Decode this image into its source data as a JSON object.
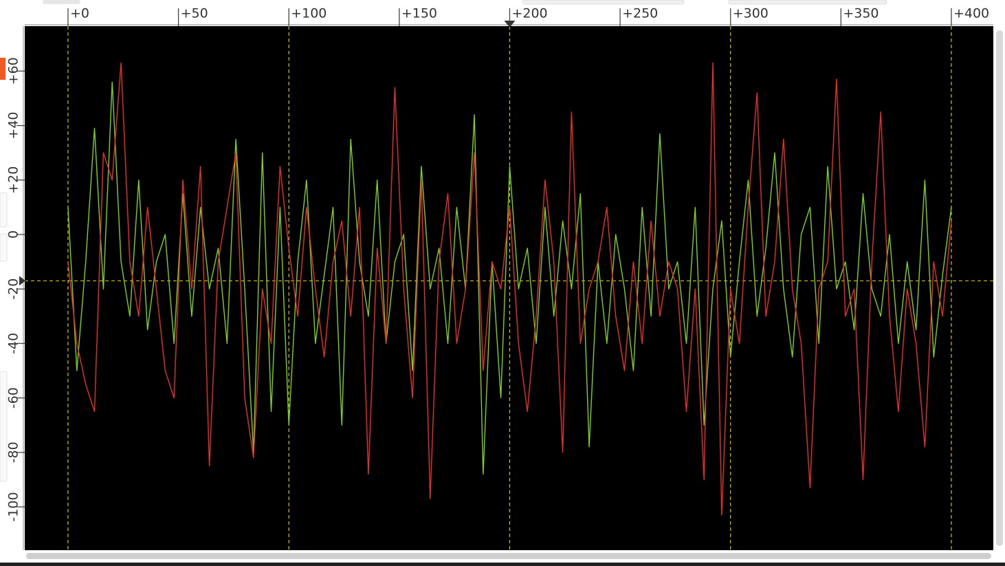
{
  "chart_data": {
    "type": "line",
    "x": [
      0,
      4,
      8,
      12,
      16,
      20,
      24,
      28,
      32,
      36,
      40,
      44,
      48,
      52,
      56,
      60,
      64,
      68,
      72,
      76,
      80,
      84,
      88,
      92,
      96,
      100,
      104,
      108,
      112,
      116,
      120,
      124,
      128,
      132,
      136,
      140,
      144,
      148,
      152,
      156,
      160,
      164,
      168,
      172,
      176,
      180,
      184,
      188,
      192,
      196,
      200,
      204,
      208,
      212,
      216,
      220,
      224,
      228,
      232,
      236,
      240,
      244,
      248,
      252,
      256,
      260,
      264,
      268,
      272,
      276,
      280,
      284,
      288,
      292,
      296,
      300,
      304,
      308,
      312,
      316,
      320,
      324,
      328,
      332,
      336,
      340,
      344,
      348,
      352,
      356,
      360,
      364,
      368,
      372,
      376,
      380,
      384,
      388,
      392,
      396,
      400
    ],
    "series": [
      {
        "color": "#7ed321",
        "values": [
          10,
          -50,
          -10,
          39,
          -20,
          56,
          -10,
          -30,
          20,
          -35,
          -10,
          0,
          -40,
          15,
          -30,
          10,
          -20,
          -5,
          -40,
          35,
          -20,
          -80,
          30,
          -65,
          10,
          -70,
          -10,
          20,
          -40,
          -15,
          10,
          -70,
          35,
          -10,
          -30,
          20,
          -40,
          -10,
          0,
          -50,
          25,
          -20,
          -5,
          -40,
          10,
          -20,
          44,
          -88,
          -10,
          -60,
          25,
          -20,
          -5,
          -40,
          10,
          -30,
          5,
          -20,
          15,
          -78,
          -10,
          -40,
          0,
          -20,
          -50,
          10,
          -30,
          37,
          -20,
          -10,
          -40,
          10,
          -70,
          -20,
          5,
          -45,
          -10,
          20,
          -30,
          -5,
          30,
          -20,
          -45,
          0,
          10,
          -40,
          25,
          -20,
          -10,
          -35,
          15,
          -20,
          -30,
          0,
          -40,
          -10,
          -35,
          20,
          -45,
          -15,
          10
        ]
      },
      {
        "color": "#e8302a",
        "values": [
          -10,
          -40,
          -55,
          -65,
          30,
          20,
          63,
          -10,
          -30,
          10,
          -20,
          -50,
          -60,
          20,
          -20,
          25,
          -85,
          -10,
          10,
          30,
          -60,
          -82,
          -20,
          -40,
          25,
          -5,
          -30,
          10,
          -20,
          -45,
          -10,
          5,
          -30,
          10,
          -88,
          -5,
          -40,
          54,
          -20,
          -60,
          20,
          -97,
          -10,
          15,
          -40,
          -20,
          30,
          -50,
          -10,
          -20,
          10,
          -40,
          -65,
          -30,
          20,
          -10,
          -80,
          45,
          -40,
          -20,
          -10,
          10,
          -30,
          -50,
          -10,
          -40,
          5,
          -30,
          -10,
          -20,
          -65,
          -20,
          -90,
          63,
          -103,
          -20,
          -40,
          10,
          52,
          -30,
          -10,
          35,
          -20,
          -40,
          -93,
          -20,
          -10,
          57,
          -30,
          -20,
          -90,
          -10,
          45,
          -30,
          -65,
          -20,
          -40,
          -78,
          -10,
          -30,
          5
        ]
      }
    ],
    "xlim": [
      -19.6,
      419
    ],
    "ylim": [
      -115.9,
      76.5
    ],
    "xticks": [
      {
        "value": 0,
        "label": "+0"
      },
      {
        "value": 50,
        "label": "+50"
      },
      {
        "value": 100,
        "label": "+100"
      },
      {
        "value": 150,
        "label": "+150"
      },
      {
        "value": 200,
        "label": "+200"
      },
      {
        "value": 250,
        "label": "+250"
      },
      {
        "value": 300,
        "label": "+300"
      },
      {
        "value": 350,
        "label": "+350"
      },
      {
        "value": 400,
        "label": "+400"
      }
    ],
    "yticks": [
      {
        "value": 60,
        "label": "+60"
      },
      {
        "value": 40,
        "label": "+40"
      },
      {
        "value": 20,
        "label": "+20"
      },
      0,
      -20,
      -40,
      -60,
      -80,
      -100
    ],
    "xgrid": [
      0,
      100,
      200,
      300,
      400
    ],
    "grid_color": "#d4c417",
    "background": "#000000",
    "cursor_x": 200,
    "reference_y": -17
  }
}
